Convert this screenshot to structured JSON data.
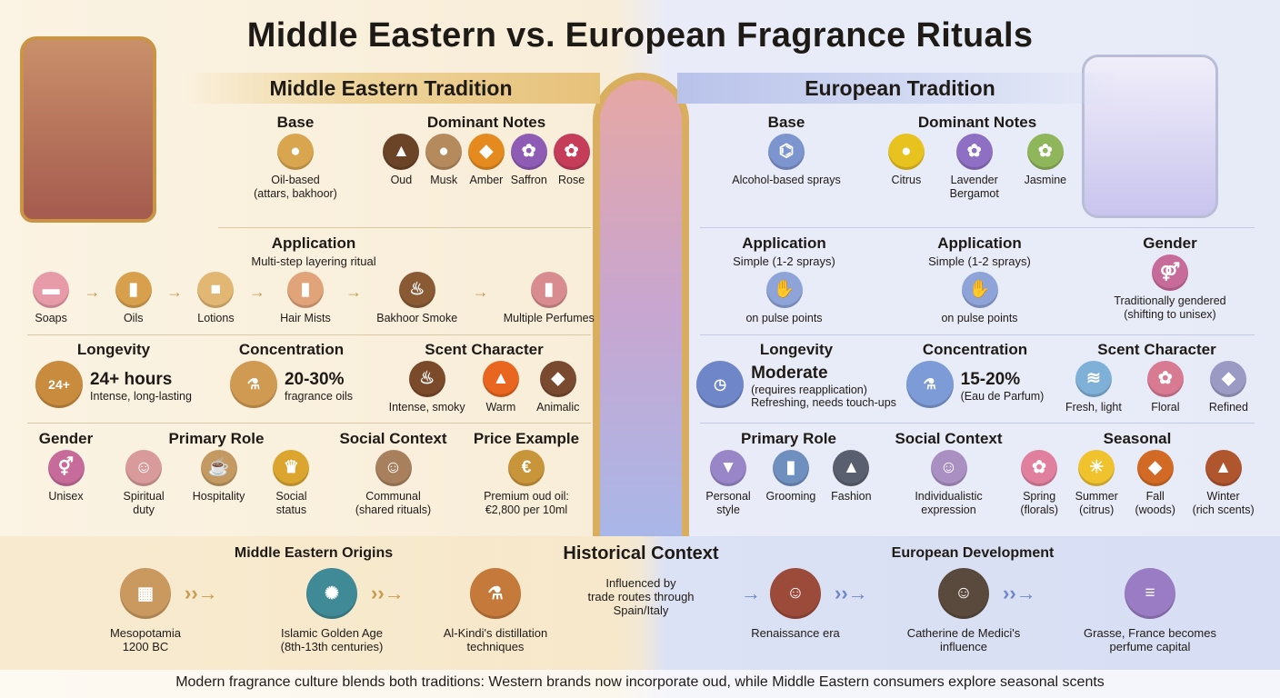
{
  "title": "Middle Eastern vs. European Fragrance Rituals",
  "colors": {
    "middle_eastern_accent": "#c9954a",
    "european_accent": "#6f86c8"
  },
  "middle_eastern": {
    "header": "Middle Eastern Tradition",
    "cells": [
      {
        "id": "me-base",
        "title": "Base",
        "items": [
          {
            "label": "Oil-based\n(attars, bakhoor)",
            "icon": "oil-drop-icon",
            "glyph": "●",
            "color": "#d9a54f"
          }
        ],
        "arrows": false
      },
      {
        "id": "me-notes",
        "title": "Dominant Notes",
        "items": [
          {
            "label": "Oud",
            "icon": "oud-wood-icon",
            "glyph": "▲",
            "color": "#6b4327"
          },
          {
            "label": "Musk",
            "icon": "musk-pouch-icon",
            "glyph": "●",
            "color": "#b58a5c"
          },
          {
            "label": "Amber",
            "icon": "amber-icon",
            "glyph": "◆",
            "color": "#e48a1f"
          },
          {
            "label": "Saffron",
            "icon": "saffron-flower-icon",
            "glyph": "✿",
            "color": "#8e5bb5"
          },
          {
            "label": "Rose",
            "icon": "rose-icon",
            "glyph": "✿",
            "color": "#c63d5a"
          }
        ]
      },
      {
        "id": "me-app",
        "title": "Application",
        "sub": "Multi-step layering ritual",
        "arrows": true,
        "items": [
          {
            "label": "Soaps",
            "icon": "soap-icon",
            "glyph": "▬",
            "color": "#e79aa8"
          },
          {
            "label": "Oils",
            "icon": "oil-bottle-icon",
            "glyph": "▮",
            "color": "#d8a04d"
          },
          {
            "label": "Lotions",
            "icon": "lotion-jar-icon",
            "glyph": "■",
            "color": "#e2b774"
          },
          {
            "label": "Hair Mists",
            "icon": "mist-bottle-icon",
            "glyph": "▮",
            "color": "#e0a37a"
          },
          {
            "label": "Bakhoor Smoke",
            "icon": "incense-burner-icon",
            "glyph": "♨",
            "color": "#8a5a35"
          },
          {
            "label": "Multiple Perfumes",
            "icon": "perfume-bottles-icon",
            "glyph": "▮",
            "color": "#d88c8f"
          }
        ]
      },
      {
        "id": "me-longevity",
        "title": "Longevity",
        "big": {
          "icon": "clock-24-icon",
          "glyph": "24+",
          "color": "#c98b3e",
          "main": "24+ hours",
          "lines": [
            "Intense, long-lasting"
          ]
        }
      },
      {
        "id": "me-conc",
        "title": "Concentration",
        "big": {
          "icon": "flask-icon",
          "glyph": "⚗",
          "color": "#d19a52",
          "main": "20-30%",
          "lines": [
            "fragrance oils"
          ]
        }
      },
      {
        "id": "me-scent",
        "title": "Scent Character",
        "items": [
          {
            "label": "Intense, smoky",
            "icon": "incense-icon",
            "glyph": "♨",
            "color": "#7b4a2a"
          },
          {
            "label": "Warm",
            "icon": "flame-icon",
            "glyph": "▲",
            "color": "#e8661f"
          },
          {
            "label": "Animalic",
            "icon": "animal-icon",
            "glyph": "◆",
            "color": "#7a4a30"
          }
        ]
      },
      {
        "id": "me-gender",
        "title": "Gender",
        "items": [
          {
            "label": "Unisex",
            "icon": "gender-symbols-icon",
            "glyph": "⚥",
            "color": "#c76c9a"
          }
        ]
      },
      {
        "id": "me-role",
        "title": "Primary Role",
        "items": [
          {
            "label": "Spiritual\nduty",
            "icon": "praying-person-icon",
            "glyph": "☺",
            "color": "#d89a9a"
          },
          {
            "label": "Hospitality",
            "icon": "tea-set-icon",
            "glyph": "☕",
            "color": "#c49a62"
          },
          {
            "label": "Social\nstatus",
            "icon": "crown-icon",
            "glyph": "♛",
            "color": "#dba52f"
          }
        ]
      },
      {
        "id": "me-social",
        "title": "Social Context",
        "items": [
          {
            "label": "Communal\n(shared rituals)",
            "icon": "group-gathering-icon",
            "glyph": "☺",
            "color": "#a8805e"
          }
        ]
      },
      {
        "id": "me-price",
        "title": "Price Example",
        "items": [
          {
            "label": "Premium oud oil:\n€2,800 per 10ml",
            "icon": "coins-bottle-icon",
            "glyph": "€",
            "color": "#c9953a"
          }
        ]
      }
    ]
  },
  "european": {
    "header": "European Tradition",
    "cells": [
      {
        "id": "eu-base",
        "title": "Base",
        "arrows": false,
        "items": [
          {
            "label": "Alcohol-based sprays",
            "icon": "alcohol-molecule-spray-icon",
            "glyph": "⌬",
            "color": "#7d95cf"
          }
        ]
      },
      {
        "id": "eu-notes",
        "title": "Dominant Notes",
        "items": [
          {
            "label": "Citrus",
            "icon": "lemon-icon",
            "glyph": "●",
            "color": "#e8c21f"
          },
          {
            "label": "Lavender\nBergamot",
            "icon": "lavender-icon",
            "glyph": "✿",
            "color": "#8f6fc4"
          },
          {
            "label": "Jasmine",
            "icon": "jasmine-icon",
            "glyph": "✿",
            "color": "#8fb65a"
          }
        ]
      },
      {
        "id": "eu-app1",
        "title": "Application",
        "sub": "Simple (1-2 sprays)",
        "items": [
          {
            "label": "on pulse points",
            "icon": "spray-wrist-icon",
            "glyph": "✋",
            "color": "#8ea3d8"
          }
        ]
      },
      {
        "id": "eu-app2",
        "title": "Application",
        "sub": "Simple (1-2 sprays)",
        "items": [
          {
            "label": "on pulse points",
            "icon": "spray-neck-icon",
            "glyph": "✋",
            "color": "#8ea3d8"
          }
        ]
      },
      {
        "id": "eu-gender",
        "title": "Gender",
        "items": [
          {
            "label": "Traditionally gendered\n(shifting to unisex)",
            "icon": "gender-symbols-icon",
            "glyph": "⚤",
            "color": "#c76c9a"
          }
        ]
      },
      {
        "id": "eu-longevity",
        "title": "Longevity",
        "big": {
          "icon": "clock-icon",
          "glyph": "◷",
          "color": "#6f86c8",
          "main": "Moderate",
          "lines": [
            "(requires reapplication)",
            "Refreshing, needs touch-ups"
          ]
        }
      },
      {
        "id": "eu-conc",
        "title": "Concentration",
        "big": {
          "icon": "flask-icon",
          "glyph": "⚗",
          "color": "#7d9bd6",
          "main": "15-20%",
          "lines": [
            "(Eau de Parfum)"
          ]
        }
      },
      {
        "id": "eu-scent",
        "title": "Scent Character",
        "items": [
          {
            "label": "Fresh, light",
            "icon": "wind-leaf-icon",
            "glyph": "≋",
            "color": "#7fb0d8"
          },
          {
            "label": "Floral",
            "icon": "bouquet-icon",
            "glyph": "✿",
            "color": "#d97a93"
          },
          {
            "label": "Refined",
            "icon": "gem-icon",
            "glyph": "◆",
            "color": "#9a9ac4"
          }
        ]
      },
      {
        "id": "eu-role",
        "title": "Primary Role",
        "items": [
          {
            "label": "Personal\nstyle",
            "icon": "blazer-icon",
            "glyph": "▼",
            "color": "#9886c8"
          },
          {
            "label": "Grooming",
            "icon": "grooming-tools-icon",
            "glyph": "▮",
            "color": "#6f8fbf"
          },
          {
            "label": "Fashion",
            "icon": "runway-icon",
            "glyph": "▲",
            "color": "#5a5f70"
          }
        ]
      },
      {
        "id": "eu-social",
        "title": "Social Context",
        "items": [
          {
            "label": "Individualistic\nexpression",
            "icon": "mirror-person-icon",
            "glyph": "☺",
            "color": "#a98fc2"
          }
        ]
      },
      {
        "id": "eu-seasonal",
        "title": "Seasonal",
        "items": [
          {
            "label": "Spring\n(florals)",
            "icon": "tulip-icon",
            "glyph": "✿",
            "color": "#e17f9f"
          },
          {
            "label": "Summer\n(citrus)",
            "icon": "sun-lemonade-icon",
            "glyph": "☀",
            "color": "#efc22e"
          },
          {
            "label": "Fall\n(woods)",
            "icon": "maple-leaf-log-icon",
            "glyph": "◆",
            "color": "#d26a25"
          },
          {
            "label": "Winter\n(rich scents)",
            "icon": "fireplace-icon",
            "glyph": "▲",
            "color": "#b0562f"
          }
        ]
      }
    ]
  },
  "history": {
    "title": "Historical Context",
    "me_header": "Middle Eastern Origins",
    "eu_header": "European Development",
    "trade_note": "Influenced by\ntrade routes through\nSpain/Italy",
    "me_items": [
      {
        "label": "Mesopotamia\n1200 BC",
        "icon": "clay-tablet-icon",
        "glyph": "▦",
        "color": "#c9995f"
      },
      {
        "label": "Islamic Golden Age\n(8th-13th centuries)",
        "icon": "islamic-pattern-icon",
        "glyph": "✺",
        "color": "#3f8a96"
      },
      {
        "label": "Al-Kindi's distillation\ntechniques",
        "icon": "alembic-icon",
        "glyph": "⚗",
        "color": "#c57a3c"
      }
    ],
    "eu_items": [
      {
        "label": "Renaissance era",
        "icon": "renaissance-portrait-icon",
        "glyph": "☺",
        "color": "#9c4a3a"
      },
      {
        "label": "Catherine de Medici's\ninfluence",
        "icon": "catherine-portrait-glove-icon",
        "glyph": "☺",
        "color": "#5a4a3e"
      },
      {
        "label": "Grasse, France becomes\nperfume capital",
        "icon": "lavender-fields-icon",
        "glyph": "≡",
        "color": "#9a7cc4"
      }
    ]
  },
  "footer": "Modern fragrance culture blends both traditions: Western brands now incorporate oud, while Middle Eastern consumers explore seasonal scents"
}
